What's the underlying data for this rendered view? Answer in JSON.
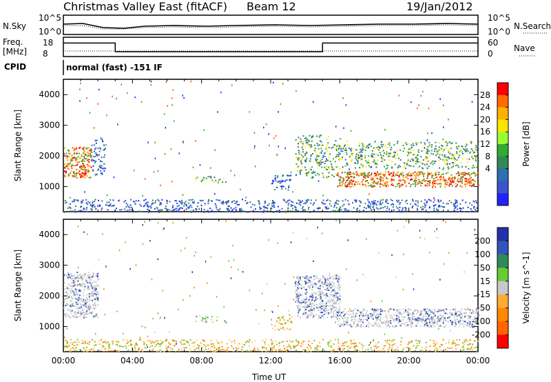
{
  "header": {
    "station": "Christmas Valley East (fitACF)",
    "beam": "Beam 12",
    "date": "19/Jan/2012"
  },
  "top_panels": {
    "nsky_label": "N.Sky",
    "nsky_ticks": [
      "10^5",
      "10^0"
    ],
    "nsearch_label": "N.Search",
    "nsearch_ticks": [
      "10^5",
      "10^0"
    ],
    "freq_label": "Freq.",
    "freq_unit": "[MHz]",
    "freq_ticks": [
      "18",
      "8"
    ],
    "nave_label": "Nave",
    "nave_ticks": [
      "60",
      "0"
    ],
    "cpid_label": "CPID",
    "cpid_text": "normal (fast) -151 IF",
    "freq_series": [
      {
        "x": 0.0,
        "y": 15.0
      },
      {
        "x": 3.0,
        "y": 15.0
      },
      {
        "x": 3.0,
        "y": 10.5
      },
      {
        "x": 15.0,
        "y": 10.5
      },
      {
        "x": 15.0,
        "y": 15.0
      },
      {
        "x": 24.0,
        "y": 15.0
      }
    ]
  },
  "chart_data": [
    {
      "type": "heatmap",
      "name": "power",
      "ylabel": "Slant Range [km]",
      "ylim": [
        180,
        4500
      ],
      "yticks": [
        1000,
        2000,
        3000,
        4000
      ],
      "xlim": [
        0,
        24
      ],
      "colorbar": {
        "label": "Power [dB]",
        "ticks": [
          "28",
          "24",
          "20",
          "16",
          "12",
          "8",
          "4"
        ],
        "colors": [
          "#ff0000",
          "#ff6a00",
          "#ffb000",
          "#ffe600",
          "#99ff33",
          "#33aa33",
          "#338855",
          "#2d6fb0",
          "#3a55cc",
          "#2222ff"
        ]
      },
      "features": [
        {
          "x0": 0.0,
          "x1": 1.6,
          "y0": 1300,
          "y1": 2300,
          "level": "strong"
        },
        {
          "x0": 1.6,
          "x1": 2.4,
          "y0": 1400,
          "y1": 2600,
          "level": "weak"
        },
        {
          "x0": 7.6,
          "x1": 9.4,
          "y0": 1150,
          "y1": 1350,
          "level": "medium"
        },
        {
          "x0": 12.0,
          "x1": 13.2,
          "y0": 900,
          "y1": 1400,
          "level": "weak"
        },
        {
          "x0": 13.4,
          "x1": 16.0,
          "y0": 1300,
          "y1": 2700,
          "level": "medium"
        },
        {
          "x0": 15.8,
          "x1": 24.0,
          "y0": 1000,
          "y1": 1500,
          "level": "strong"
        },
        {
          "x0": 16.0,
          "x1": 24.0,
          "y0": 1600,
          "y1": 2500,
          "level": "medium"
        },
        {
          "x0": 0.0,
          "x1": 24.0,
          "y0": 180,
          "y1": 600,
          "level": "weak"
        }
      ]
    },
    {
      "type": "heatmap",
      "name": "velocity",
      "ylabel": "Slant Range [km]",
      "xlabel": "Time UT",
      "ylim": [
        180,
        4500
      ],
      "yticks": [
        1000,
        2000,
        3000,
        4000
      ],
      "xlim": [
        0,
        24
      ],
      "xticks": [
        "00:00",
        "04:00",
        "08:00",
        "12:00",
        "16:00",
        "20:00",
        "00:00"
      ],
      "colorbar": {
        "label": "Velocity [m s^-1]",
        "ticks": [
          "200",
          "100",
          "50",
          "15",
          "-15",
          "-50",
          "-100",
          "-200"
        ],
        "colors": [
          "#2233aa",
          "#3355bb",
          "#2e8b57",
          "#66cc33",
          "#c8c8c8",
          "#ffaa33",
          "#ff8800",
          "#ff6600",
          "#ff0000"
        ]
      },
      "features": [
        {
          "x0": 0.0,
          "x1": 2.0,
          "y0": 1300,
          "y1": 2800,
          "level": "gray"
        },
        {
          "x0": 7.6,
          "x1": 9.4,
          "y0": 1150,
          "y1": 1350,
          "level": "green"
        },
        {
          "x0": 12.0,
          "x1": 13.2,
          "y0": 900,
          "y1": 1400,
          "level": "orange"
        },
        {
          "x0": 13.4,
          "x1": 16.0,
          "y0": 1300,
          "y1": 2700,
          "level": "gray"
        },
        {
          "x0": 15.8,
          "x1": 24.0,
          "y0": 1000,
          "y1": 1600,
          "level": "gray"
        },
        {
          "x0": 0.0,
          "x1": 24.0,
          "y0": 180,
          "y1": 600,
          "level": "orange"
        }
      ]
    }
  ]
}
